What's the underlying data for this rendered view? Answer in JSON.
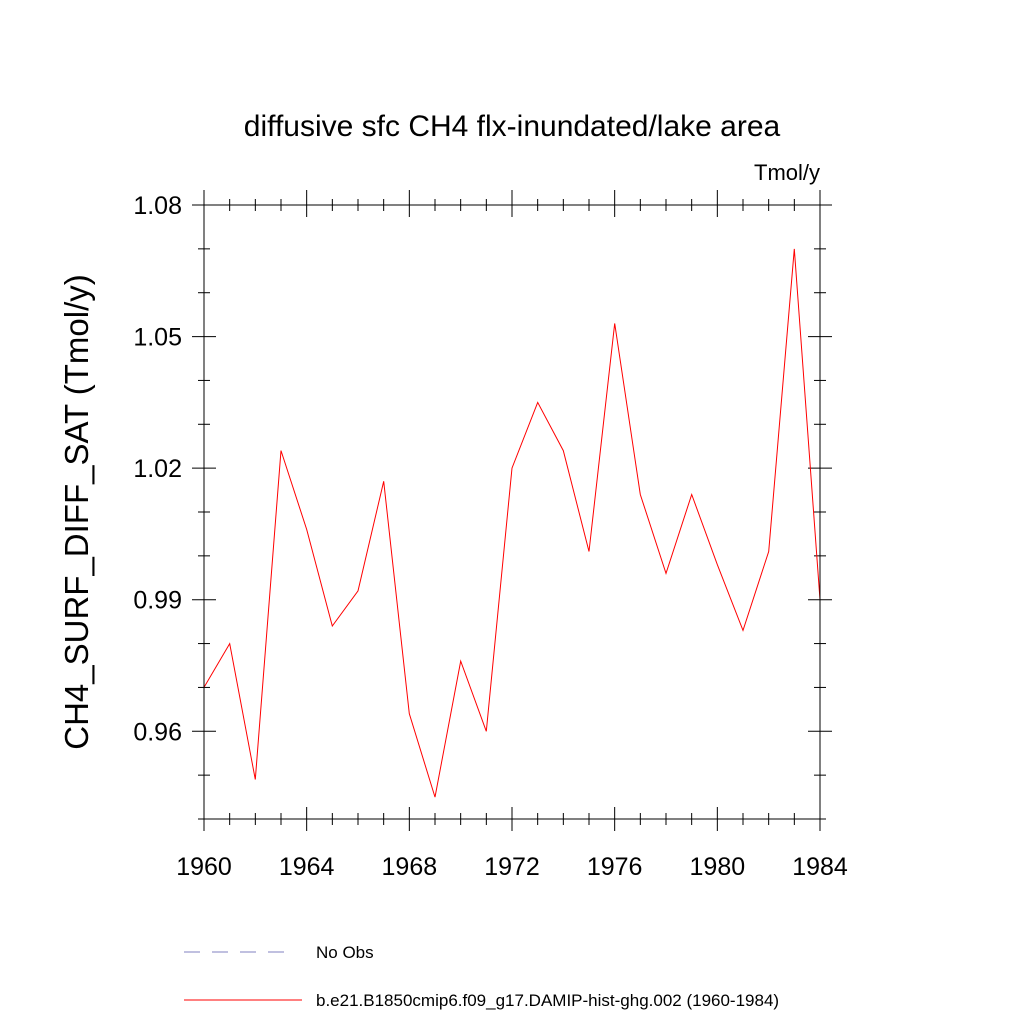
{
  "chart_data": {
    "type": "line",
    "title": "diffusive sfc CH4 flx-inundated/lake area",
    "units": "Tmol/y",
    "xlabel": "",
    "ylabel": "CH4_SURF_DIFF_SAT  (Tmol/y)",
    "xlim": [
      1960,
      1984
    ],
    "ylim": [
      0.94,
      1.08
    ],
    "x_ticks": [
      1960,
      1964,
      1968,
      1972,
      1976,
      1980,
      1984
    ],
    "x_tick_labels": [
      "1960",
      "1964",
      "1968",
      "1972",
      "1976",
      "1980",
      "1984"
    ],
    "y_ticks": [
      0.96,
      0.99,
      1.02,
      1.05,
      1.08
    ],
    "y_tick_labels": [
      "0.96",
      "0.99",
      "1.02",
      "1.05",
      "1.08"
    ],
    "x": [
      1960,
      1961,
      1962,
      1963,
      1964,
      1965,
      1966,
      1967,
      1968,
      1969,
      1970,
      1971,
      1972,
      1973,
      1974,
      1975,
      1976,
      1977,
      1978,
      1979,
      1980,
      1981,
      1982,
      1983,
      1984
    ],
    "series": [
      {
        "name": "b.e21.B1850cmip6.f09_g17.DAMIP-hist-ghg.002 (1960-1984)",
        "color": "#ff0000",
        "style": "solid",
        "values": [
          0.97,
          0.98,
          0.949,
          1.024,
          1.006,
          0.984,
          0.992,
          1.017,
          0.964,
          0.945,
          0.976,
          0.96,
          1.02,
          1.035,
          1.024,
          1.001,
          1.053,
          1.014,
          0.996,
          1.014,
          0.998,
          0.983,
          1.001,
          1.07,
          0.99
        ]
      }
    ],
    "legend": {
      "placement": "bottom",
      "entries": [
        {
          "label": "No Obs",
          "color": "#8080c0",
          "style": "dashed"
        },
        {
          "label": "b.e21.B1850cmip6.f09_g17.DAMIP-hist-ghg.002 (1960-1984)",
          "color": "#ff0000",
          "style": "solid"
        }
      ]
    },
    "grid": false
  }
}
